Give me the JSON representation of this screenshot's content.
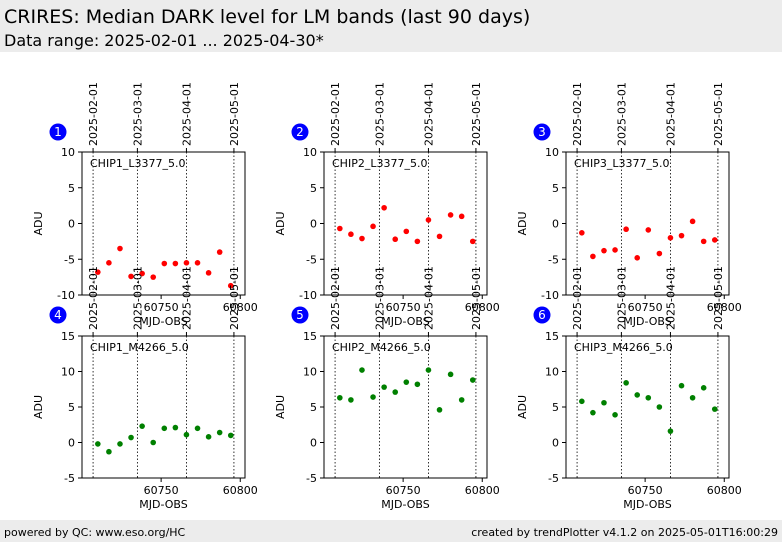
{
  "header": {
    "title": "CRIRES: Median DARK level for LM bands (last 90 days)",
    "subtitle": "Data range: 2025-02-01 ... 2025-04-30*"
  },
  "footer": {
    "left": "powered by QC: www.eso.org/HC",
    "right": "created by trendPlotter v4.1.2 on 2025-05-01T16:00:29"
  },
  "colors": {
    "row1_points": "#ff0000",
    "row2_points": "#008000",
    "badge": "#0000ff"
  },
  "chart_data": [
    {
      "type": "scatter",
      "panel": "1",
      "label": "CHIP1_L3377_5.0",
      "xlabel": "MJD-OBS",
      "ylabel": "ADU",
      "xlim": [
        60700,
        60803
      ],
      "ylim": [
        -10,
        10
      ],
      "xticks": [
        60750,
        60800
      ],
      "yticks": [
        -10,
        -5,
        0,
        5,
        10
      ],
      "date_ticks": [
        {
          "label": "2025-02-01",
          "mjd": 60707
        },
        {
          "label": "2025-03-01",
          "mjd": 60735
        },
        {
          "label": "2025-04-01",
          "mjd": 60766
        },
        {
          "label": "2025-05-01",
          "mjd": 60796
        }
      ],
      "points": [
        [
          60710,
          -6.8
        ],
        [
          60717,
          -5.5
        ],
        [
          60724,
          -3.5
        ],
        [
          60731,
          -7.4
        ],
        [
          60738,
          -7.0
        ],
        [
          60745,
          -7.5
        ],
        [
          60752,
          -5.6
        ],
        [
          60759,
          -5.6
        ],
        [
          60766,
          -5.5
        ],
        [
          60773,
          -5.5
        ],
        [
          60780,
          -6.9
        ],
        [
          60787,
          -4.0
        ],
        [
          60794,
          -8.7
        ]
      ]
    },
    {
      "type": "scatter",
      "panel": "2",
      "label": "CHIP2_L3377_5.0",
      "xlabel": "MJD-OBS",
      "ylabel": "ADU",
      "xlim": [
        60700,
        60803
      ],
      "ylim": [
        -10,
        10
      ],
      "xticks": [
        60750,
        60800
      ],
      "yticks": [
        -10,
        -5,
        0,
        5,
        10
      ],
      "date_ticks": [
        {
          "label": "2025-02-01",
          "mjd": 60707
        },
        {
          "label": "2025-03-01",
          "mjd": 60735
        },
        {
          "label": "2025-04-01",
          "mjd": 60766
        },
        {
          "label": "2025-05-01",
          "mjd": 60796
        }
      ],
      "points": [
        [
          60710,
          -0.7
        ],
        [
          60717,
          -1.5
        ],
        [
          60724,
          -2.1
        ],
        [
          60731,
          -0.4
        ],
        [
          60738,
          2.2
        ],
        [
          60745,
          -2.2
        ],
        [
          60752,
          -1.1
        ],
        [
          60759,
          -2.5
        ],
        [
          60766,
          0.5
        ],
        [
          60773,
          -1.8
        ],
        [
          60780,
          1.2
        ],
        [
          60787,
          1.0
        ],
        [
          60794,
          -2.5
        ]
      ]
    },
    {
      "type": "scatter",
      "panel": "3",
      "label": "CHIP3_L3377_5.0",
      "xlabel": "MJD-OBS",
      "ylabel": "ADU",
      "xlim": [
        60700,
        60803
      ],
      "ylim": [
        -10,
        10
      ],
      "xticks": [
        60750,
        60800
      ],
      "yticks": [
        -10,
        -5,
        0,
        5,
        10
      ],
      "date_ticks": [
        {
          "label": "2025-02-01",
          "mjd": 60707
        },
        {
          "label": "2025-03-01",
          "mjd": 60735
        },
        {
          "label": "2025-04-01",
          "mjd": 60766
        },
        {
          "label": "2025-05-01",
          "mjd": 60796
        }
      ],
      "points": [
        [
          60710,
          -1.3
        ],
        [
          60717,
          -4.6
        ],
        [
          60724,
          -3.8
        ],
        [
          60731,
          -3.7
        ],
        [
          60738,
          -0.8
        ],
        [
          60745,
          -4.8
        ],
        [
          60752,
          -0.9
        ],
        [
          60759,
          -4.2
        ],
        [
          60766,
          -2.0
        ],
        [
          60773,
          -1.7
        ],
        [
          60780,
          0.3
        ],
        [
          60787,
          -2.5
        ],
        [
          60794,
          -2.3
        ]
      ]
    },
    {
      "type": "scatter",
      "panel": "4",
      "label": "CHIP1_M4266_5.0",
      "xlabel": "MJD-OBS",
      "ylabel": "ADU",
      "xlim": [
        60700,
        60803
      ],
      "ylim": [
        -5,
        15
      ],
      "xticks": [
        60750,
        60800
      ],
      "yticks": [
        -5,
        0,
        5,
        10,
        15
      ],
      "date_ticks": [
        {
          "label": "2025-02-01",
          "mjd": 60707
        },
        {
          "label": "2025-03-01",
          "mjd": 60735
        },
        {
          "label": "2025-04-01",
          "mjd": 60766
        },
        {
          "label": "2025-05-01",
          "mjd": 60796
        }
      ],
      "points": [
        [
          60710,
          -0.2
        ],
        [
          60717,
          -1.3
        ],
        [
          60724,
          -0.2
        ],
        [
          60731,
          0.7
        ],
        [
          60738,
          2.3
        ],
        [
          60745,
          0.0
        ],
        [
          60752,
          2.0
        ],
        [
          60759,
          2.1
        ],
        [
          60766,
          1.1
        ],
        [
          60773,
          2.0
        ],
        [
          60780,
          0.8
        ],
        [
          60787,
          1.4
        ],
        [
          60794,
          1.0
        ]
      ]
    },
    {
      "type": "scatter",
      "panel": "5",
      "label": "CHIP2_M4266_5.0",
      "xlabel": "MJD-OBS",
      "ylabel": "ADU",
      "xlim": [
        60700,
        60803
      ],
      "ylim": [
        -5,
        15
      ],
      "xticks": [
        60750,
        60800
      ],
      "yticks": [
        -5,
        0,
        5,
        10,
        15
      ],
      "date_ticks": [
        {
          "label": "2025-02-01",
          "mjd": 60707
        },
        {
          "label": "2025-03-01",
          "mjd": 60735
        },
        {
          "label": "2025-04-01",
          "mjd": 60766
        },
        {
          "label": "2025-05-01",
          "mjd": 60796
        }
      ],
      "points": [
        [
          60710,
          6.3
        ],
        [
          60717,
          6.0
        ],
        [
          60724,
          10.2
        ],
        [
          60731,
          6.4
        ],
        [
          60738,
          7.8
        ],
        [
          60745,
          7.1
        ],
        [
          60752,
          8.5
        ],
        [
          60759,
          8.2
        ],
        [
          60766,
          10.2
        ],
        [
          60773,
          4.6
        ],
        [
          60780,
          9.6
        ],
        [
          60787,
          6.0
        ],
        [
          60794,
          8.8
        ]
      ]
    },
    {
      "type": "scatter",
      "panel": "6",
      "label": "CHIP3_M4266_5.0",
      "xlabel": "MJD-OBS",
      "ylabel": "ADU",
      "xlim": [
        60700,
        60803
      ],
      "ylim": [
        -5,
        15
      ],
      "xticks": [
        60750,
        60800
      ],
      "yticks": [
        -5,
        0,
        5,
        10,
        15
      ],
      "date_ticks": [
        {
          "label": "2025-02-01",
          "mjd": 60707
        },
        {
          "label": "2025-03-01",
          "mjd": 60735
        },
        {
          "label": "2025-04-01",
          "mjd": 60766
        },
        {
          "label": "2025-05-01",
          "mjd": 60796
        }
      ],
      "points": [
        [
          60710,
          5.8
        ],
        [
          60717,
          4.2
        ],
        [
          60724,
          5.6
        ],
        [
          60731,
          3.9
        ],
        [
          60738,
          8.4
        ],
        [
          60745,
          6.7
        ],
        [
          60752,
          6.3
        ],
        [
          60759,
          5.0
        ],
        [
          60766,
          1.6
        ],
        [
          60773,
          8.0
        ],
        [
          60780,
          6.3
        ],
        [
          60787,
          7.7
        ],
        [
          60794,
          4.7
        ]
      ]
    }
  ]
}
